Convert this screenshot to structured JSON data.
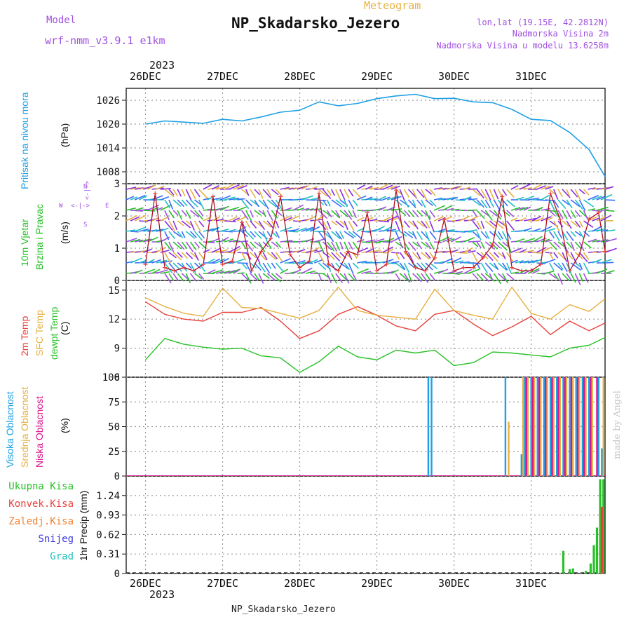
{
  "header": {
    "meteogram_label": "Meteogram",
    "model_label": "Model",
    "model_name": "wrf-nmm_v3.9.1 e1km",
    "station_title": "NP_Skadarsko_Jezero",
    "lonlat": "lon,lat (19.15E, 42.2812N)",
    "elevation": "Nadmorska Visina 2m",
    "model_elevation": "Nadmorska Visina u modelu 13.6258m",
    "year_top": "2023",
    "year_bottom": "2023",
    "footer_station": "NP_Skadarsko_Jezero",
    "credit": "made by Angel"
  },
  "colors": {
    "pressure": "#1ea0e6",
    "t2m": "#e8413c",
    "sfc": "#e6b040",
    "dewpt": "#27c127",
    "high_cloud": "#1ea0e6",
    "mid_cloud": "#e6b040",
    "low_cloud": "#d9138a",
    "wind_label": "#27c127",
    "wind_dir": "#a050e0",
    "precip_total": "#27c127",
    "precip_conv": "#e8413c",
    "precip_frz": "#f08030",
    "precip_snow": "#3b3be0",
    "precip_grad": "#20c0c0",
    "header_purple": "#a050e0",
    "header_gold": "#e6b040"
  },
  "chart_data": [
    {
      "type": "line",
      "panel": "pressure",
      "labels": {
        "name": "Pritisak na nivou mora",
        "unit": "(hPa)"
      },
      "x_ticks": [
        "26DEC",
        "27DEC",
        "28DEC",
        "29DEC",
        "30DEC",
        "31DEC"
      ],
      "y_ticks": [
        1008,
        1014,
        1020,
        1026
      ],
      "ylim": [
        1005,
        1029
      ],
      "grid": true,
      "x_hours": [
        0,
        6,
        12,
        18,
        24,
        30,
        36,
        42,
        48,
        54,
        60,
        66,
        72,
        78,
        84,
        90,
        96,
        102,
        108,
        114,
        120,
        126,
        132,
        138,
        143
      ],
      "series": [
        {
          "values": [
            1020.0,
            1020.8,
            1020.5,
            1020.2,
            1021.2,
            1020.8,
            1021.8,
            1023.0,
            1023.5,
            1025.6,
            1024.6,
            1025.2,
            1026.4,
            1027.1,
            1027.5,
            1026.4,
            1026.5,
            1025.6,
            1025.4,
            1023.7,
            1021.2,
            1020.9,
            1017.9,
            1013.6,
            1006.8
          ]
        }
      ]
    },
    {
      "type": "line",
      "panel": "wind",
      "labels": {
        "name1": "10m Vjetar",
        "name2": "Brzina i Pravac",
        "unit": "(m/s)",
        "compass_n": "N",
        "compass_e": "E",
        "compass_w": "W",
        "compass_s": "S",
        "compass_arrow": "<-|->"
      },
      "y_ticks": [
        0,
        1,
        2,
        3
      ],
      "ylim": [
        0,
        3
      ],
      "grid": true,
      "x_hours": [
        0,
        3,
        6,
        9,
        12,
        15,
        18,
        21,
        24,
        27,
        30,
        33,
        36,
        39,
        42,
        45,
        48,
        51,
        54,
        57,
        60,
        63,
        66,
        69,
        72,
        75,
        78,
        81,
        84,
        87,
        90,
        93,
        96,
        99,
        102,
        105,
        108,
        111,
        114,
        117,
        120,
        123,
        126,
        129,
        132,
        135,
        138,
        141,
        143
      ],
      "series": [
        {
          "name": "speed",
          "values": [
            0.5,
            2.7,
            0.4,
            0.3,
            0.4,
            0.3,
            0.5,
            2.6,
            0.5,
            0.6,
            1.8,
            0.3,
            0.9,
            1.3,
            2.6,
            0.8,
            0.4,
            0.6,
            2.7,
            0.5,
            0.3,
            0.9,
            0.8,
            2.1,
            0.3,
            0.5,
            2.8,
            0.9,
            0.4,
            0.3,
            0.7,
            1.9,
            0.3,
            0.4,
            0.4,
            0.7,
            1.1,
            2.6,
            0.4,
            0.3,
            0.3,
            0.5,
            2.7,
            1.9,
            0.3,
            0.8,
            1.9,
            2.1,
            0.9
          ]
        }
      ]
    },
    {
      "type": "line",
      "panel": "temperature",
      "labels": {
        "name1": "2m Temp",
        "name2": "SFC Temp",
        "name3": "dewpt Temp",
        "unit": "(C)"
      },
      "y_ticks": [
        6,
        9,
        12,
        15
      ],
      "ylim": [
        6,
        16
      ],
      "grid": true,
      "x_hours": [
        0,
        6,
        12,
        18,
        24,
        30,
        36,
        42,
        48,
        54,
        60,
        66,
        72,
        78,
        84,
        90,
        96,
        102,
        108,
        114,
        120,
        126,
        132,
        138,
        143
      ],
      "series": [
        {
          "name": "2m Temp",
          "values": [
            13.8,
            12.5,
            12.0,
            11.8,
            12.7,
            12.7,
            13.2,
            11.8,
            10.0,
            10.8,
            12.5,
            13.3,
            12.4,
            11.3,
            10.8,
            12.5,
            12.9,
            11.5,
            10.3,
            11.2,
            12.3,
            10.4,
            11.8,
            10.8,
            11.6
          ]
        },
        {
          "name": "SFC Temp",
          "values": [
            14.2,
            13.3,
            12.6,
            12.3,
            15.2,
            13.2,
            13.1,
            12.6,
            12.1,
            12.9,
            15.3,
            12.9,
            12.4,
            12.2,
            12.0,
            15.1,
            12.9,
            12.4,
            12.0,
            15.3,
            12.6,
            12.0,
            13.5,
            12.8,
            14.1
          ]
        },
        {
          "name": "dewpt Temp",
          "values": [
            7.8,
            10.0,
            9.4,
            9.1,
            8.9,
            9.0,
            8.2,
            8.0,
            6.5,
            7.6,
            9.2,
            8.1,
            7.8,
            8.8,
            8.5,
            8.8,
            7.2,
            7.5,
            8.6,
            8.5,
            8.3,
            8.1,
            9.0,
            9.3,
            10.1
          ]
        }
      ]
    },
    {
      "type": "bar",
      "panel": "clouds",
      "labels": {
        "name1": "Visoka Oblacnost",
        "name2": "Srednja Oblacnost",
        "name3": "Niska Oblacnost",
        "unit": "(%)"
      },
      "y_ticks": [
        0,
        25,
        50,
        75,
        100
      ],
      "ylim": [
        0,
        100
      ],
      "grid": true,
      "series": [
        {
          "name": "Visoka Oblacnost",
          "points": [
            [
              88,
              100
            ],
            [
              89,
              100
            ],
            [
              112,
              100
            ],
            [
              117,
              22
            ],
            [
              118,
              100
            ],
            [
              120,
              100
            ],
            [
              122,
              100
            ],
            [
              124,
              100
            ],
            [
              126,
              100
            ],
            [
              128,
              100
            ],
            [
              130,
              100
            ],
            [
              132,
              100
            ],
            [
              134,
              100
            ],
            [
              136,
              100
            ],
            [
              138,
              100
            ],
            [
              141,
              100
            ],
            [
              142,
              28
            ]
          ]
        },
        {
          "name": "Srednja Oblacnost",
          "points": [
            [
              113,
              55
            ],
            [
              117.5,
              100
            ],
            [
              119,
              100
            ],
            [
              121,
              100
            ],
            [
              123,
              100
            ],
            [
              125,
              100
            ],
            [
              127,
              100
            ],
            [
              129,
              100
            ],
            [
              131,
              100
            ],
            [
              133,
              100
            ],
            [
              135,
              100
            ],
            [
              137,
              100
            ],
            [
              139,
              100
            ],
            [
              142.5,
              100
            ]
          ]
        },
        {
          "name": "Niska Oblacnost",
          "points": [
            [
              118.5,
              100
            ],
            [
              120.5,
              100
            ],
            [
              122.5,
              100
            ],
            [
              124.5,
              100
            ],
            [
              126.5,
              100
            ],
            [
              128.5,
              100
            ],
            [
              130.5,
              100
            ],
            [
              132.5,
              100
            ],
            [
              134.5,
              100
            ],
            [
              136.5,
              100
            ],
            [
              138.5,
              100
            ],
            [
              140.5,
              100
            ]
          ]
        }
      ]
    },
    {
      "type": "bar",
      "panel": "precipitation",
      "labels": {
        "name1": "Ukupna Kisa",
        "name2": "Konvek.Kisa",
        "name3": "Zaledj.Kisa",
        "name4": "Snijeg",
        "name5": "Grad",
        "unit": "1hr Precip (mm)"
      },
      "x_ticks": [
        "26DEC",
        "27DEC",
        "28DEC",
        "29DEC",
        "30DEC",
        "31DEC"
      ],
      "y_ticks": [
        "0",
        "0.31",
        "0.62",
        "0.93",
        "1.24"
      ],
      "ylim": [
        0,
        1.55
      ],
      "grid": true,
      "series": [
        {
          "name": "Ukupna Kisa",
          "points": [
            [
              130,
              0.36
            ],
            [
              132,
              0.07
            ],
            [
              133,
              0.08
            ],
            [
              137,
              0.04
            ],
            [
              138.5,
              0.16
            ],
            [
              139.5,
              0.45
            ],
            [
              140.5,
              0.73
            ],
            [
              141.5,
              1.5
            ],
            [
              142.5,
              1.5
            ]
          ]
        },
        {
          "name": "Konvek.Kisa",
          "points": [
            [
              142,
              1.06
            ]
          ]
        }
      ]
    }
  ]
}
